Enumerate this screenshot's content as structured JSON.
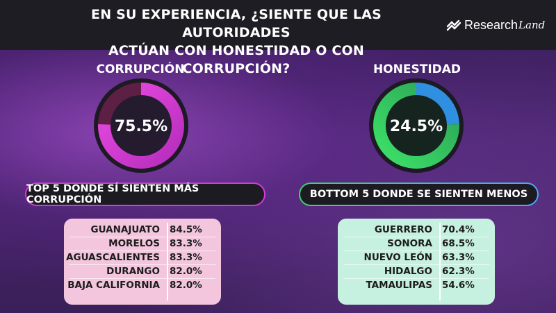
{
  "header": {
    "title_line1": "EN SU EXPERIENCIA, ¿SIENTE QUE LAS AUTORIDADES",
    "title_line2": "ACTÚAN CON HONESTIDAD O CON CORRUPCIÓN?",
    "logo_text": "Research",
    "logo_italic": "Land"
  },
  "colors": {
    "corrupcion": "#d63ad8",
    "honestidad": "#3ed46a",
    "honestidad_accent": "#2f8fe0",
    "table_left_bg": "#f3c6dd",
    "table_right_bg": "#c6f0e0"
  },
  "chart_data": [
    {
      "type": "pie",
      "title": "CORRUPCIÓN",
      "values": [
        75.5,
        24.5
      ],
      "label": "75.5%"
    },
    {
      "type": "pie",
      "title": "HONESTIDAD",
      "values": [
        24.5,
        75.5
      ],
      "label": "24.5%"
    },
    {
      "type": "table",
      "title": "TOP 5 DONDE SÍ SIENTEN MÁS CORRUPCIÓN",
      "rows": [
        {
          "name": "GUANAJUATO",
          "value": "84.5%"
        },
        {
          "name": "MORELOS",
          "value": "83.3%"
        },
        {
          "name": "AGUASCALIENTES",
          "value": "83.3%"
        },
        {
          "name": "DURANGO",
          "value": "82.0%"
        },
        {
          "name": "BAJA CALIFORNIA",
          "value": "82.0%"
        }
      ]
    },
    {
      "type": "table",
      "title": "BOTTOM 5 DONDE SE SIENTEN MENOS",
      "rows": [
        {
          "name": "GUERRERO",
          "value": "70.4%"
        },
        {
          "name": "SONORA",
          "value": "68.5%"
        },
        {
          "name": "NUEVO LEÓN",
          "value": "63.3%"
        },
        {
          "name": "HIDALGO",
          "value": "62.3%"
        },
        {
          "name": "TAMAULIPAS",
          "value": "54.6%"
        }
      ]
    }
  ]
}
